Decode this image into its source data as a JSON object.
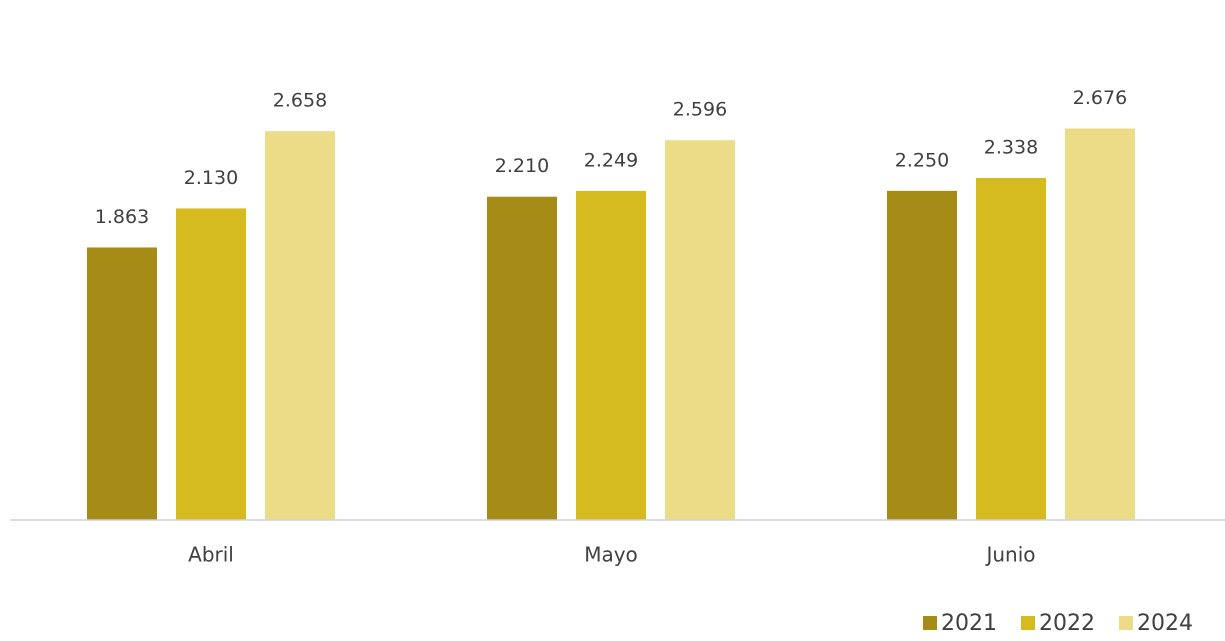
{
  "chart_data": {
    "type": "bar",
    "categories": [
      "Abril",
      "Mayo",
      "Junio"
    ],
    "series": [
      {
        "name": "2021",
        "color": "#a48c17",
        "values": [
          1863,
          2210,
          2250
        ],
        "value_labels": [
          "1.863",
          "2.210",
          "2.250"
        ]
      },
      {
        "name": "2022",
        "color": "#d6bb1f",
        "values": [
          2130,
          2249,
          2338
        ],
        "value_labels": [
          "2.130",
          "2.249",
          "2.338"
        ]
      },
      {
        "name": "2024",
        "color": "#ecdc88",
        "values": [
          2658,
          2596,
          2676
        ],
        "value_labels": [
          "2.658",
          "2.596",
          "2.676"
        ]
      }
    ],
    "ylim": [
      0,
      3500
    ],
    "legend": "bottom-right"
  }
}
